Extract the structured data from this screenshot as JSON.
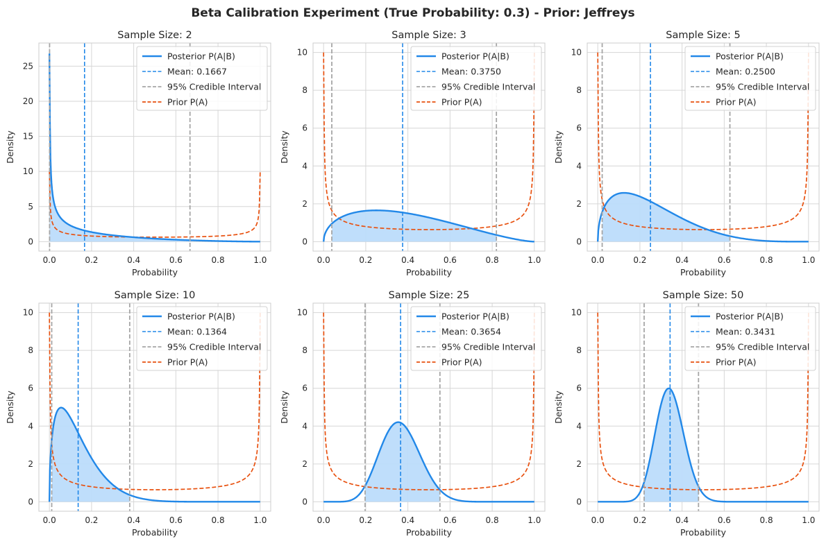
{
  "figure_title": "Beta Calibration Experiment (True Probability: 0.3) - Prior: Jeffreys",
  "colors": {
    "posterior": "#2288e8",
    "posterior_fill": "#bcdcfb",
    "mean": "#2288e8",
    "credible_interval": "#a6a6a6",
    "prior": "#e8500e",
    "grid": "#d6d6d6",
    "spine": "#cccccc"
  },
  "chart_data": [
    {
      "type": "line",
      "title": "Sample Size: 2",
      "xlabel": "Probability",
      "ylabel": "Density",
      "xlim": [
        -0.05,
        1.05
      ],
      "ylim": [
        -1.35,
        28.3
      ],
      "xticks": [
        0.0,
        0.2,
        0.4,
        0.6,
        0.8,
        1.0
      ],
      "xtick_labels": [
        "0.0",
        "0.2",
        "0.4",
        "0.6",
        "0.8",
        "1.0"
      ],
      "yticks": [
        0,
        5,
        10,
        15,
        20,
        25
      ],
      "ytick_labels": [
        "0",
        "5",
        "10",
        "15",
        "20",
        "25"
      ],
      "grid": true,
      "legend_position": "upper right",
      "posterior": {
        "alpha": 0.5,
        "beta": 2.5
      },
      "posterior_peak_shown": 26.8,
      "mean": 0.1667,
      "credible_interval": [
        0.0008,
        0.667
      ],
      "prior": {
        "alpha": 0.5,
        "beta": 0.5,
        "clip": 10
      },
      "legend": [
        "Posterior P(A|B)",
        "Mean: 0.1667",
        "95% Credible Interval",
        "Prior P(A)"
      ]
    },
    {
      "type": "line",
      "title": "Sample Size: 3",
      "xlabel": "Probability",
      "ylabel": "Density",
      "xlim": [
        -0.05,
        1.05
      ],
      "ylim": [
        -0.5,
        10.5
      ],
      "xticks": [
        0.0,
        0.2,
        0.4,
        0.6,
        0.8,
        1.0
      ],
      "xtick_labels": [
        "0.0",
        "0.2",
        "0.4",
        "0.6",
        "0.8",
        "1.0"
      ],
      "yticks": [
        0,
        2,
        4,
        6,
        8,
        10
      ],
      "ytick_labels": [
        "0",
        "2",
        "4",
        "6",
        "8",
        "10"
      ],
      "grid": true,
      "legend_position": "upper right",
      "posterior": {
        "alpha": 1.5,
        "beta": 2.5
      },
      "mean": 0.375,
      "credible_interval": [
        0.039,
        0.82
      ],
      "prior": {
        "alpha": 0.5,
        "beta": 0.5,
        "clip": 10
      },
      "legend": [
        "Posterior P(A|B)",
        "Mean: 0.3750",
        "95% Credible Interval",
        "Prior P(A)"
      ]
    },
    {
      "type": "line",
      "title": "Sample Size: 5",
      "xlabel": "Probability",
      "ylabel": "Density",
      "xlim": [
        -0.05,
        1.05
      ],
      "ylim": [
        -0.5,
        10.5
      ],
      "xticks": [
        0.0,
        0.2,
        0.4,
        0.6,
        0.8,
        1.0
      ],
      "xtick_labels": [
        "0.0",
        "0.2",
        "0.4",
        "0.6",
        "0.8",
        "1.0"
      ],
      "yticks": [
        0,
        2,
        4,
        6,
        8,
        10
      ],
      "ytick_labels": [
        "0",
        "2",
        "4",
        "6",
        "8",
        "10"
      ],
      "grid": true,
      "legend_position": "upper right",
      "posterior": {
        "alpha": 1.5,
        "beta": 4.5
      },
      "mean": 0.25,
      "credible_interval": [
        0.021,
        0.627
      ],
      "prior": {
        "alpha": 0.5,
        "beta": 0.5,
        "clip": 10
      },
      "legend": [
        "Posterior P(A|B)",
        "Mean: 0.2500",
        "95% Credible Interval",
        "Prior P(A)"
      ]
    },
    {
      "type": "line",
      "title": "Sample Size: 10",
      "xlabel": "Probability",
      "ylabel": "Density",
      "xlim": [
        -0.05,
        1.05
      ],
      "ylim": [
        -0.5,
        10.5
      ],
      "xticks": [
        0.0,
        0.2,
        0.4,
        0.6,
        0.8,
        1.0
      ],
      "xtick_labels": [
        "0.0",
        "0.2",
        "0.4",
        "0.6",
        "0.8",
        "1.0"
      ],
      "yticks": [
        0,
        2,
        4,
        6,
        8,
        10
      ],
      "ytick_labels": [
        "0",
        "2",
        "4",
        "6",
        "8",
        "10"
      ],
      "grid": true,
      "legend_position": "upper right",
      "posterior": {
        "alpha": 1.5,
        "beta": 9.5
      },
      "mean": 0.1364,
      "credible_interval": [
        0.011,
        0.381
      ],
      "prior": {
        "alpha": 0.5,
        "beta": 0.5,
        "clip": 10
      },
      "legend": [
        "Posterior P(A|B)",
        "Mean: 0.1364",
        "95% Credible Interval",
        "Prior P(A)"
      ]
    },
    {
      "type": "line",
      "title": "Sample Size: 25",
      "xlabel": "Probability",
      "ylabel": "Density",
      "xlim": [
        -0.05,
        1.05
      ],
      "ylim": [
        -0.5,
        10.5
      ],
      "xticks": [
        0.0,
        0.2,
        0.4,
        0.6,
        0.8,
        1.0
      ],
      "xtick_labels": [
        "0.0",
        "0.2",
        "0.4",
        "0.6",
        "0.8",
        "1.0"
      ],
      "yticks": [
        0,
        2,
        4,
        6,
        8,
        10
      ],
      "ytick_labels": [
        "0",
        "2",
        "4",
        "6",
        "8",
        "10"
      ],
      "grid": true,
      "legend_position": "upper right",
      "posterior": {
        "alpha": 9.5,
        "beta": 16.5
      },
      "mean": 0.3654,
      "credible_interval": [
        0.197,
        0.552
      ],
      "prior": {
        "alpha": 0.5,
        "beta": 0.5,
        "clip": 10
      },
      "legend": [
        "Posterior P(A|B)",
        "Mean: 0.3654",
        "95% Credible Interval",
        "Prior P(A)"
      ]
    },
    {
      "type": "line",
      "title": "Sample Size: 50",
      "xlabel": "Probability",
      "ylabel": "Density",
      "xlim": [
        -0.05,
        1.05
      ],
      "ylim": [
        -0.5,
        10.5
      ],
      "xticks": [
        0.0,
        0.2,
        0.4,
        0.6,
        0.8,
        1.0
      ],
      "xtick_labels": [
        "0.0",
        "0.2",
        "0.4",
        "0.6",
        "0.8",
        "1.0"
      ],
      "yticks": [
        0,
        2,
        4,
        6,
        8,
        10
      ],
      "ytick_labels": [
        "0",
        "2",
        "4",
        "6",
        "8",
        "10"
      ],
      "grid": true,
      "legend_position": "upper right",
      "posterior": {
        "alpha": 17.5,
        "beta": 33.5
      },
      "mean": 0.3431,
      "credible_interval": [
        0.22,
        0.478
      ],
      "prior": {
        "alpha": 0.5,
        "beta": 0.5,
        "clip": 10
      },
      "legend": [
        "Posterior P(A|B)",
        "Mean: 0.3431",
        "95% Credible Interval",
        "Prior P(A)"
      ]
    }
  ]
}
